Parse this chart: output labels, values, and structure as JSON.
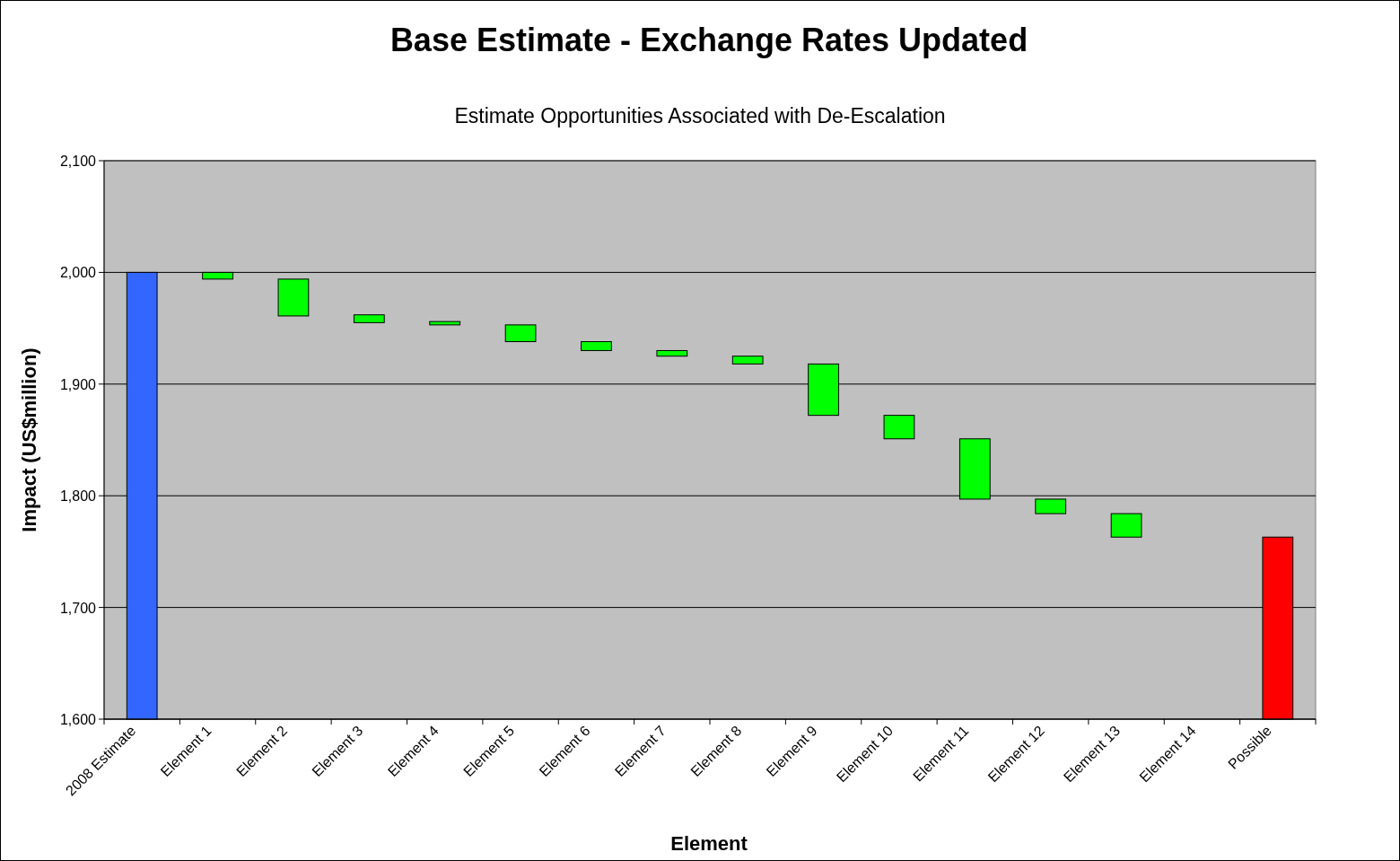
{
  "chart_data": {
    "type": "bar",
    "title": "Base Estimate - Exchange Rates Updated",
    "subtitle": "Estimate Opportunities Associated with De-Escalation",
    "xlabel": "Element",
    "ylabel": "Impact (US$million)",
    "categories": [
      "2008 Estimate",
      "Element 1",
      "Element 2",
      "Element 3",
      "Element 4",
      "Element 5",
      "Element 6",
      "Element 7",
      "Element 8",
      "Element 9",
      "Element 10",
      "Element 11",
      "Element 12",
      "Element 13",
      "Element 14",
      "Possible"
    ],
    "values": [
      400,
      6,
      33,
      7,
      3,
      15,
      8,
      5,
      7,
      46,
      21,
      54,
      13,
      21,
      null,
      163
    ],
    "base": [
      1600,
      1994,
      1961,
      1955,
      1953,
      1938,
      1930,
      1925,
      1918,
      1872,
      1851,
      1797,
      1784,
      1763,
      null,
      1600
    ],
    "colors": [
      "#3366ff",
      "#00ff00",
      "#00ff00",
      "#00ff00",
      "#00ff00",
      "#00ff00",
      "#00ff00",
      "#00ff00",
      "#00ff00",
      "#00ff00",
      "#00ff00",
      "#00ff00",
      "#00ff00",
      "#00ff00",
      null,
      "#ff0000"
    ],
    "ylim": [
      1600,
      2100
    ],
    "yticks": [
      {
        "value": 1600,
        "label": "1,600"
      },
      {
        "value": 1700,
        "label": "1,700"
      },
      {
        "value": 1800,
        "label": "1,800"
      },
      {
        "value": 1900,
        "label": "1,900"
      },
      {
        "value": 2000,
        "label": "2,000"
      },
      {
        "value": 2100,
        "label": "2,100"
      }
    ],
    "grid": "y"
  }
}
